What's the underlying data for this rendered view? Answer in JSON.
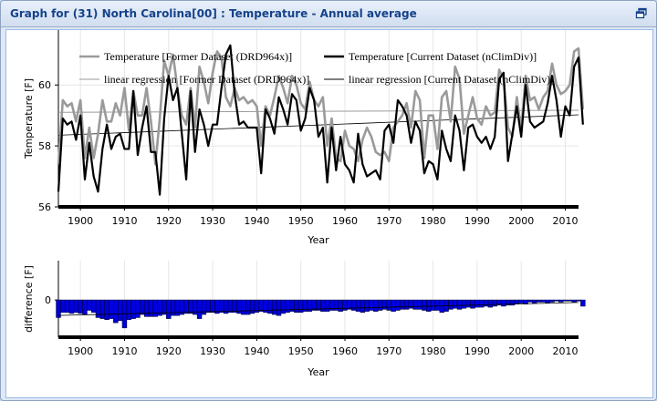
{
  "window": {
    "title": "Graph for (31) North Carolina[00] : Temperature - Annual average"
  },
  "chart_data": [
    {
      "type": "line",
      "xlabel": "Year",
      "ylabel": "Temperature [F]",
      "xlim": [
        1895,
        2013
      ],
      "ylim": [
        56,
        61.8
      ],
      "xticks": [
        1900,
        1910,
        1920,
        1930,
        1940,
        1950,
        1960,
        1970,
        1980,
        1990,
        2000,
        2010
      ],
      "yticks": [
        56,
        58,
        60
      ],
      "grid": true,
      "legend_position": "top",
      "legend": [
        "Temperature [Former Dataset (DRD964x)]",
        "Temperature [Current Dataset (nClimDiv)]",
        "linear regression [Former Dataset (DRD964x)]",
        "linear regression [Current Dataset (nClimDiv)]"
      ],
      "x_start": 1895,
      "series": [
        {
          "name": "Temperature [Former Dataset (DRD964x)]",
          "color": "#9a9a9a",
          "values": [
            57.4,
            59.5,
            59.3,
            59.4,
            58.8,
            59.5,
            57.6,
            58.6,
            57.6,
            58.4,
            59.5,
            58.8,
            58.8,
            59.4,
            59.0,
            59.9,
            58.5,
            59.8,
            59.0,
            59.0,
            59.9,
            58.8,
            57.4,
            58.9,
            60.8,
            60.3,
            61.0,
            59.9,
            59.0,
            58.7,
            59.9,
            58.6,
            60.6,
            60.1,
            59.4,
            60.4,
            61.1,
            60.9,
            59.6,
            59.3,
            59.9,
            59.5,
            59.6,
            59.4,
            59.5,
            59.3,
            58.0,
            59.3,
            59.0,
            59.6,
            60.3,
            59.9,
            59.4,
            60.3,
            60.0,
            59.4,
            59.2,
            60.1,
            59.5,
            59.3,
            59.6,
            58.0,
            58.9,
            57.6,
            57.5,
            58.5,
            58.0,
            57.9,
            57.5,
            58.2,
            58.6,
            58.3,
            57.8,
            57.7,
            57.8,
            57.5,
            58.6,
            58.8,
            59.0,
            59.4,
            58.6,
            59.8,
            59.5,
            57.6,
            59.0,
            59.0,
            57.9,
            59.6,
            59.8,
            58.8,
            60.6,
            60.2,
            58.4,
            59.0,
            59.6,
            58.9,
            58.7,
            59.3,
            59.0,
            59.1,
            60.5,
            60.2,
            58.6,
            58.3,
            59.6,
            58.5,
            60.3,
            59.5,
            59.6,
            59.2,
            59.6,
            59.8,
            60.7,
            60.0,
            59.7,
            59.8,
            60.0,
            61.1,
            61.2,
            59.2
          ]
        },
        {
          "name": "Temperature [Current Dataset (nClimDiv)]",
          "color": "#000000",
          "values": [
            56.5,
            58.9,
            58.7,
            58.8,
            58.2,
            59.0,
            56.9,
            58.1,
            57.0,
            56.5,
            57.9,
            58.7,
            57.9,
            58.3,
            58.4,
            57.9,
            57.9,
            59.8,
            57.7,
            58.6,
            59.3,
            57.8,
            57.8,
            56.4,
            58.9,
            60.3,
            59.5,
            59.9,
            58.4,
            56.9,
            59.8,
            57.8,
            59.2,
            58.7,
            58.0,
            58.7,
            58.7,
            59.9,
            61.0,
            61.3,
            59.7,
            58.7,
            58.8,
            58.6,
            58.6,
            58.6,
            57.1,
            59.2,
            58.9,
            58.4,
            59.6,
            59.2,
            58.7,
            59.7,
            59.5,
            58.5,
            58.9,
            59.9,
            59.5,
            58.3,
            58.6,
            56.8,
            58.6,
            57.2,
            58.3,
            57.4,
            57.2,
            56.8,
            58.4,
            57.4,
            57.0,
            57.1,
            57.2,
            56.9,
            58.5,
            58.7,
            58.1,
            59.5,
            59.3,
            59.0,
            58.1,
            58.8,
            58.5,
            57.1,
            57.5,
            57.4,
            56.9,
            58.5,
            57.9,
            57.5,
            59.0,
            58.5,
            57.2,
            58.6,
            58.7,
            58.3,
            58.1,
            58.3,
            57.9,
            58.3,
            60.2,
            60.4,
            57.5,
            58.4,
            59.3,
            58.3,
            60.0,
            58.8,
            58.6,
            58.7,
            58.8,
            59.4,
            60.3,
            59.5,
            58.3,
            59.3,
            59.0,
            60.6,
            60.9,
            58.7
          ]
        },
        {
          "name": "linear regression [Former Dataset (DRD964x)]",
          "color": "#9a9a9a",
          "values": [
            59.1,
            59.17
          ]
        },
        {
          "name": "linear regression [Current Dataset (nClimDiv)]",
          "color": "#000000",
          "values": [
            58.35,
            59.02
          ]
        }
      ]
    },
    {
      "type": "bar",
      "xlabel": "Year",
      "ylabel": "difference [F]",
      "xlim": [
        1895,
        2013
      ],
      "ylim": [
        -1.8,
        1.9
      ],
      "xticks": [
        1900,
        1910,
        1920,
        1930,
        1940,
        1950,
        1960,
        1970,
        1980,
        1990,
        2000,
        2010
      ],
      "yticks": [
        0
      ],
      "grid": true,
      "x_start": 1895,
      "series": [
        {
          "name": "",
          "color": "#0000dd",
          "values": [
            -0.85,
            -0.6,
            -0.6,
            -0.65,
            -0.6,
            -0.65,
            -0.7,
            -0.5,
            -0.6,
            -0.85,
            -0.9,
            -0.95,
            -0.9,
            -1.1,
            -1.0,
            -1.35,
            -0.95,
            -0.9,
            -0.85,
            -0.7,
            -0.8,
            -0.8,
            -0.8,
            -0.75,
            -0.7,
            -0.9,
            -0.75,
            -0.75,
            -0.7,
            -0.65,
            -0.65,
            -0.7,
            -0.9,
            -0.7,
            -0.6,
            -0.6,
            -0.65,
            -0.6,
            -0.65,
            -0.6,
            -0.6,
            -0.65,
            -0.7,
            -0.7,
            -0.65,
            -0.6,
            -0.55,
            -0.6,
            -0.65,
            -0.7,
            -0.75,
            -0.65,
            -0.6,
            -0.55,
            -0.6,
            -0.6,
            -0.55,
            -0.55,
            -0.5,
            -0.5,
            -0.55,
            -0.55,
            -0.5,
            -0.5,
            -0.55,
            -0.5,
            -0.45,
            -0.5,
            -0.55,
            -0.6,
            -0.55,
            -0.5,
            -0.55,
            -0.5,
            -0.45,
            -0.5,
            -0.55,
            -0.5,
            -0.45,
            -0.45,
            -0.4,
            -0.45,
            -0.45,
            -0.5,
            -0.55,
            -0.5,
            -0.5,
            -0.6,
            -0.55,
            -0.45,
            -0.4,
            -0.45,
            -0.4,
            -0.35,
            -0.4,
            -0.35,
            -0.35,
            -0.3,
            -0.35,
            -0.3,
            -0.25,
            -0.3,
            -0.25,
            -0.25,
            -0.2,
            -0.15,
            -0.2,
            -0.1,
            -0.15,
            -0.1,
            -0.1,
            -0.15,
            -0.1,
            -0.05,
            -0.1,
            -0.05,
            -0.05,
            -0.1,
            -0.05,
            -0.3
          ]
        },
        {
          "name": "",
          "color": "#000000",
          "values": [
            -0.75,
            -0.12
          ]
        }
      ]
    }
  ]
}
